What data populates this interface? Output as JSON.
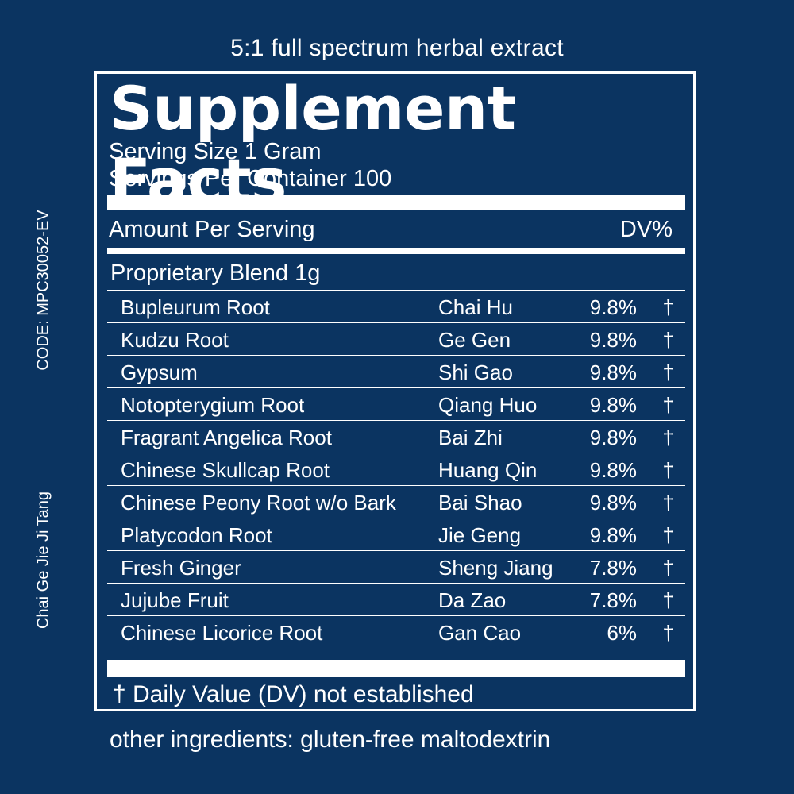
{
  "header": {
    "caption": "5:1 full spectrum herbal extract"
  },
  "side": {
    "code": "CODE: MPC30052-EV",
    "formula_name": "Chai Ge Jie Ji Tang"
  },
  "facts": {
    "title": "Supplement Facts",
    "serving_size": "Serving Size 1 Gram",
    "servings_per_container": "Servings Per Container 100",
    "amount_per_serving": "Amount Per Serving",
    "dv_header": "DV%",
    "blend": "Proprietary Blend 1g",
    "ingredients": [
      {
        "name": "Bupleurum Root",
        "pinyin": "Chai Hu",
        "pct": "9.8%",
        "mark": "†"
      },
      {
        "name": "Kudzu Root",
        "pinyin": "Ge Gen",
        "pct": "9.8%",
        "mark": "†"
      },
      {
        "name": "Gypsum",
        "pinyin": "Shi Gao",
        "pct": "9.8%",
        "mark": "†"
      },
      {
        "name": "Notopterygium Root",
        "pinyin": "Qiang Huo",
        "pct": "9.8%",
        "mark": "†"
      },
      {
        "name": "Fragrant Angelica Root",
        "pinyin": "Bai Zhi",
        "pct": "9.8%",
        "mark": "†"
      },
      {
        "name": "Chinese Skullcap Root",
        "pinyin": "Huang Qin",
        "pct": "9.8%",
        "mark": "†"
      },
      {
        "name": "Chinese Peony Root w/o Bark",
        "pinyin": "Bai Shao",
        "pct": "9.8%",
        "mark": "†"
      },
      {
        "name": "Platycodon Root",
        "pinyin": "Jie Geng",
        "pct": "9.8%",
        "mark": "†"
      },
      {
        "name": "Fresh Ginger",
        "pinyin": "Sheng Jiang",
        "pct": "7.8%",
        "mark": "†"
      },
      {
        "name": "Jujube Fruit",
        "pinyin": "Da Zao",
        "pct": "7.8%",
        "mark": "†"
      },
      {
        "name": "Chinese Licorice Root",
        "pinyin": "Gan Cao",
        "pct": "6%",
        "mark": "†"
      }
    ],
    "footnote": "† Daily Value (DV) not established"
  },
  "footer": {
    "other_ingredients": "other ingredients: gluten-free maltodextrin"
  },
  "colors": {
    "background": "#0b3461",
    "foreground": "#ffffff"
  }
}
